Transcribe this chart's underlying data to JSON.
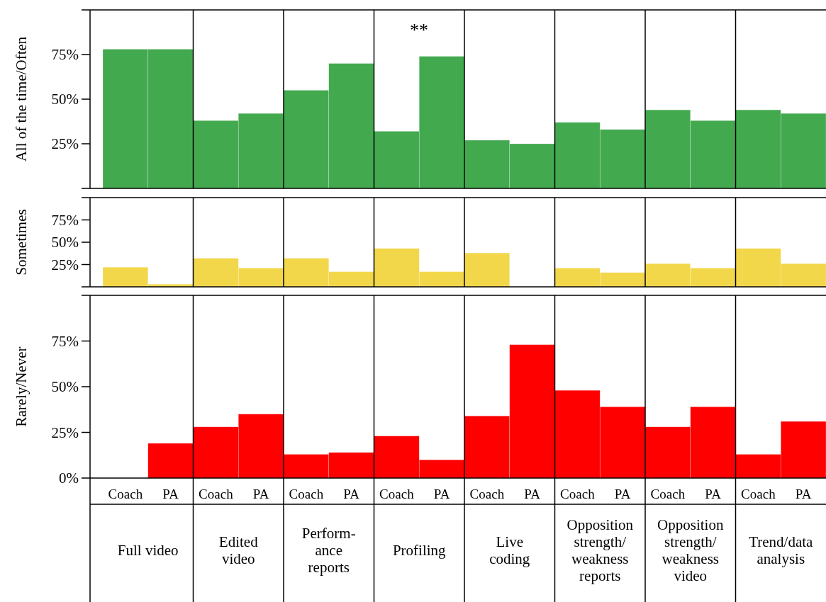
{
  "chart_data": [
    {
      "type": "bar",
      "ylabel": "All of the time/Often",
      "series": [
        {
          "color": "#43a94f",
          "values": [
            78,
            38,
            55,
            32,
            27,
            37,
            44,
            44
          ]
        },
        {
          "color": "#43a94f",
          "values": [
            78,
            42,
            70,
            74,
            25,
            33,
            38,
            42
          ]
        }
      ],
      "ylim": [
        0,
        100
      ],
      "yticks": [
        {
          "value": 0,
          "label": null
        },
        {
          "value": 25,
          "label": "25%"
        },
        {
          "value": 50,
          "label": "50%"
        },
        {
          "value": 75,
          "label": "75%"
        },
        {
          "value": 100,
          "label": null
        }
      ],
      "annotations": [
        "**"
      ],
      "tick_labels": "y"
    },
    {
      "type": "bar",
      "ylabel": "Sometimes",
      "series": [
        {
          "color": "#f2d74a",
          "values": [
            22,
            32,
            32,
            43,
            38,
            21,
            26,
            43
          ]
        },
        {
          "color": "#f2d74a",
          "values": [
            3,
            21,
            17,
            17,
            0,
            16,
            21,
            26
          ]
        }
      ],
      "ylim": [
        0,
        100
      ],
      "yticks": [
        {
          "value": 0,
          "label": null
        },
        {
          "value": 25,
          "label": "25%"
        },
        {
          "value": 50,
          "label": "50%"
        },
        {
          "value": 75,
          "label": "75%"
        },
        {
          "value": 100,
          "label": null
        }
      ],
      "tick_labels": "y"
    },
    {
      "type": "bar",
      "ylabel": "Rarely/Never",
      "categories": [
        "Full video",
        "Edited\nvideo",
        "Perform-\nance\nreports",
        "Profiling",
        "Live\ncoding",
        "Opposition\nstrength/\nweakness\nreports",
        "Opposition\nstrength/\nweakness\nvideo",
        "Trend/data\nanalysis"
      ],
      "series": [
        {
          "name": "Coach",
          "color": "#fe0000",
          "values": [
            0,
            28,
            13,
            23,
            34,
            48,
            28,
            13
          ]
        },
        {
          "name": "PA",
          "color": "#fe0000",
          "values": [
            19,
            35,
            14,
            10,
            73,
            39,
            39,
            31
          ]
        }
      ],
      "ylim": [
        0,
        100
      ],
      "yticks": [
        {
          "value": 0,
          "label": "0%"
        },
        {
          "value": 25,
          "label": "25%"
        },
        {
          "value": 50,
          "label": "50%"
        },
        {
          "value": 75,
          "label": "75%"
        },
        {
          "value": 100,
          "label": null
        }
      ]
    }
  ]
}
